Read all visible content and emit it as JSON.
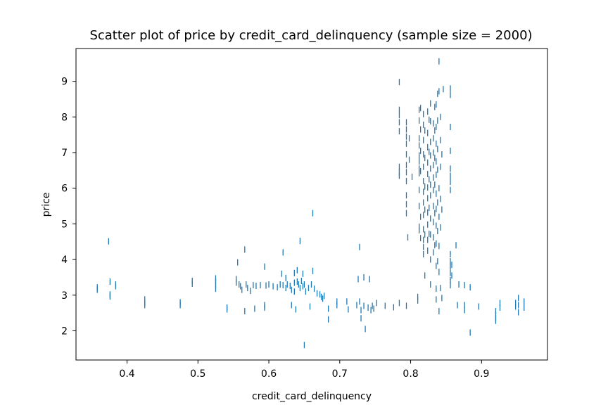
{
  "chart_data": {
    "type": "scatter",
    "title": "Scatter plot of price by credit_card_delinquency (sample size = 2000)",
    "xlabel": "credit_card_delinquency",
    "ylabel": "price",
    "xlim": [
      0.328,
      0.993
    ],
    "ylim": [
      1.18,
      9.92
    ],
    "xticks": [
      0.4,
      0.5,
      0.6,
      0.7,
      0.8,
      0.9
    ],
    "yticks": [
      2,
      3,
      4,
      5,
      6,
      7,
      8,
      9
    ],
    "xtick_labels": [
      "0.4",
      "0.5",
      "0.6",
      "0.7",
      "0.8",
      "0.9"
    ],
    "ytick_labels": [
      "2",
      "3",
      "4",
      "5",
      "6",
      "7",
      "8",
      "9"
    ],
    "grid": false,
    "marker": "|",
    "series_color": "#1f77b4",
    "points": [
      [
        0.358,
        3.22
      ],
      [
        0.358,
        3.15
      ],
      [
        0.374,
        4.51
      ],
      [
        0.376,
        3.38
      ],
      [
        0.376,
        3.02
      ],
      [
        0.376,
        2.96
      ],
      [
        0.384,
        3.3
      ],
      [
        0.384,
        3.25
      ],
      [
        0.425,
        2.88
      ],
      [
        0.425,
        2.78
      ],
      [
        0.425,
        2.72
      ],
      [
        0.475,
        2.8
      ],
      [
        0.475,
        2.72
      ],
      [
        0.492,
        3.4
      ],
      [
        0.492,
        3.32
      ],
      [
        0.525,
        3.47
      ],
      [
        0.525,
        3.38
      ],
      [
        0.525,
        3.28
      ],
      [
        0.525,
        3.18
      ],
      [
        0.541,
        2.65
      ],
      [
        0.541,
        2.6
      ],
      [
        0.554,
        3.45
      ],
      [
        0.554,
        3.35
      ],
      [
        0.556,
        3.92
      ],
      [
        0.558,
        3.3
      ],
      [
        0.56,
        3.25
      ],
      [
        0.562,
        3.15
      ],
      [
        0.566,
        4.28
      ],
      [
        0.566,
        2.55
      ],
      [
        0.568,
        3.3
      ],
      [
        0.57,
        3.2
      ],
      [
        0.574,
        3.12
      ],
      [
        0.578,
        3.28
      ],
      [
        0.58,
        2.62
      ],
      [
        0.582,
        3.26
      ],
      [
        0.588,
        3.28
      ],
      [
        0.594,
        3.8
      ],
      [
        0.594,
        2.72
      ],
      [
        0.594,
        2.65
      ],
      [
        0.596,
        3.27
      ],
      [
        0.6,
        3.3
      ],
      [
        0.606,
        3.25
      ],
      [
        0.612,
        3.22
      ],
      [
        0.616,
        3.3
      ],
      [
        0.618,
        3.6
      ],
      [
        0.62,
        4.2
      ],
      [
        0.62,
        3.28
      ],
      [
        0.624,
        3.48
      ],
      [
        0.624,
        3.2
      ],
      [
        0.626,
        3.3
      ],
      [
        0.63,
        3.26
      ],
      [
        0.632,
        3.15
      ],
      [
        0.632,
        2.72
      ],
      [
        0.636,
        3.62
      ],
      [
        0.636,
        3.35
      ],
      [
        0.636,
        3.1
      ],
      [
        0.638,
        2.6
      ],
      [
        0.64,
        3.7
      ],
      [
        0.64,
        3.38
      ],
      [
        0.642,
        3.3
      ],
      [
        0.644,
        4.52
      ],
      [
        0.644,
        3.2
      ],
      [
        0.646,
        3.4
      ],
      [
        0.648,
        3.6
      ],
      [
        0.648,
        3.25
      ],
      [
        0.65,
        1.6
      ],
      [
        0.65,
        3.3
      ],
      [
        0.652,
        3.1
      ],
      [
        0.656,
        3.2
      ],
      [
        0.658,
        2.68
      ],
      [
        0.66,
        3.3
      ],
      [
        0.662,
        5.3
      ],
      [
        0.662,
        3.68
      ],
      [
        0.664,
        3.18
      ],
      [
        0.668,
        3.05
      ],
      [
        0.672,
        3.02
      ],
      [
        0.674,
        2.95
      ],
      [
        0.676,
        2.9
      ],
      [
        0.678,
        2.98
      ],
      [
        0.684,
        2.62
      ],
      [
        0.684,
        2.32
      ],
      [
        0.696,
        2.82
      ],
      [
        0.696,
        2.72
      ],
      [
        0.71,
        2.82
      ],
      [
        0.712,
        2.6
      ],
      [
        0.724,
        2.72
      ],
      [
        0.726,
        3.45
      ],
      [
        0.728,
        4.35
      ],
      [
        0.728,
        2.82
      ],
      [
        0.73,
        2.58
      ],
      [
        0.73,
        2.35
      ],
      [
        0.734,
        3.5
      ],
      [
        0.734,
        2.7
      ],
      [
        0.736,
        2.05
      ],
      [
        0.74,
        2.65
      ],
      [
        0.742,
        3.45
      ],
      [
        0.744,
        2.58
      ],
      [
        0.746,
        2.7
      ],
      [
        0.748,
        2.62
      ],
      [
        0.752,
        2.78
      ],
      [
        0.764,
        2.7
      ],
      [
        0.776,
        2.66
      ],
      [
        0.784,
        8.98
      ],
      [
        0.784,
        8.2
      ],
      [
        0.784,
        8.05
      ],
      [
        0.784,
        7.85
      ],
      [
        0.784,
        7.6
      ],
      [
        0.784,
        6.6
      ],
      [
        0.784,
        6.45
      ],
      [
        0.784,
        6.35
      ],
      [
        0.784,
        2.78
      ],
      [
        0.794,
        7.85
      ],
      [
        0.794,
        7.65
      ],
      [
        0.794,
        7.45
      ],
      [
        0.794,
        7.25
      ],
      [
        0.794,
        6.95
      ],
      [
        0.794,
        6.65
      ],
      [
        0.794,
        6.45
      ],
      [
        0.794,
        6.2
      ],
      [
        0.794,
        5.8
      ],
      [
        0.794,
        5.55
      ],
      [
        0.794,
        5.3
      ],
      [
        0.794,
        2.7
      ],
      [
        0.796,
        4.62
      ],
      [
        0.798,
        7.4
      ],
      [
        0.798,
        6.8
      ],
      [
        0.802,
        6.32
      ],
      [
        0.81,
        2.95
      ],
      [
        0.81,
        2.85
      ],
      [
        0.812,
        8.2
      ],
      [
        0.812,
        7.9
      ],
      [
        0.812,
        7.4
      ],
      [
        0.812,
        7.2
      ],
      [
        0.812,
        6.92
      ],
      [
        0.812,
        6.75
      ],
      [
        0.812,
        6.55
      ],
      [
        0.812,
        6.42
      ],
      [
        0.812,
        5.95
      ],
      [
        0.812,
        5.5
      ],
      [
        0.812,
        4.92
      ],
      [
        0.812,
        4.82
      ],
      [
        0.814,
        8.25
      ],
      [
        0.814,
        7.65
      ],
      [
        0.814,
        7.05
      ],
      [
        0.814,
        6.48
      ],
      [
        0.814,
        5.2
      ],
      [
        0.814,
        4.6
      ],
      [
        0.818,
        8.08
      ],
      [
        0.818,
        7.78
      ],
      [
        0.818,
        7.35
      ],
      [
        0.818,
        6.95
      ],
      [
        0.818,
        6.6
      ],
      [
        0.818,
        6.2
      ],
      [
        0.818,
        5.9
      ],
      [
        0.818,
        5.6
      ],
      [
        0.818,
        5.25
      ],
      [
        0.818,
        4.85
      ],
      [
        0.818,
        4.55
      ],
      [
        0.818,
        4.35
      ],
      [
        0.818,
        4.15
      ],
      [
        0.82,
        7.62
      ],
      [
        0.82,
        6.85
      ],
      [
        0.82,
        6.05
      ],
      [
        0.82,
        5.4
      ],
      [
        0.82,
        4.7
      ],
      [
        0.82,
        3.55
      ],
      [
        0.824,
        8.15
      ],
      [
        0.824,
        7.55
      ],
      [
        0.824,
        7.15
      ],
      [
        0.824,
        6.72
      ],
      [
        0.824,
        6.4
      ],
      [
        0.824,
        6.02
      ],
      [
        0.824,
        5.72
      ],
      [
        0.824,
        5.32
      ],
      [
        0.824,
        4.98
      ],
      [
        0.824,
        4.55
      ],
      [
        0.824,
        4.25
      ],
      [
        0.826,
        7.92
      ],
      [
        0.826,
        7.02
      ],
      [
        0.826,
        6.25
      ],
      [
        0.826,
        5.45
      ],
      [
        0.826,
        4.72
      ],
      [
        0.828,
        8.38
      ],
      [
        0.828,
        7.88
      ],
      [
        0.828,
        7.3
      ],
      [
        0.828,
        6.92
      ],
      [
        0.828,
        6.55
      ],
      [
        0.828,
        6.1
      ],
      [
        0.828,
        5.8
      ],
      [
        0.828,
        5.15
      ],
      [
        0.828,
        4.7
      ],
      [
        0.828,
        4.0
      ],
      [
        0.828,
        3.3
      ],
      [
        0.832,
        7.82
      ],
      [
        0.832,
        7.4
      ],
      [
        0.832,
        7.0
      ],
      [
        0.832,
        6.65
      ],
      [
        0.832,
        6.3
      ],
      [
        0.832,
        5.95
      ],
      [
        0.832,
        5.5
      ],
      [
        0.832,
        5.05
      ],
      [
        0.832,
        4.62
      ],
      [
        0.832,
        4.2
      ],
      [
        0.834,
        8.28
      ],
      [
        0.834,
        7.62
      ],
      [
        0.834,
        6.85
      ],
      [
        0.834,
        6.1
      ],
      [
        0.834,
        5.3
      ],
      [
        0.834,
        4.4
      ],
      [
        0.836,
        8.35
      ],
      [
        0.836,
        7.72
      ],
      [
        0.836,
        7.25
      ],
      [
        0.836,
        6.75
      ],
      [
        0.836,
        6.38
      ],
      [
        0.836,
        5.85
      ],
      [
        0.836,
        5.42
      ],
      [
        0.836,
        4.95
      ],
      [
        0.836,
        4.45
      ],
      [
        0.836,
        3.82
      ],
      [
        0.836,
        3.18
      ],
      [
        0.836,
        2.88
      ],
      [
        0.838,
        8.65
      ],
      [
        0.838,
        7.9
      ],
      [
        0.838,
        7.1
      ],
      [
        0.838,
        6.52
      ],
      [
        0.838,
        5.6
      ],
      [
        0.838,
        4.8
      ],
      [
        0.838,
        3.95
      ],
      [
        0.84,
        9.56
      ],
      [
        0.84,
        8.72
      ],
      [
        0.84,
        6.0
      ],
      [
        0.84,
        5.2
      ],
      [
        0.84,
        4.38
      ],
      [
        0.84,
        3.65
      ],
      [
        0.84,
        2.55
      ],
      [
        0.842,
        8.0
      ],
      [
        0.842,
        7.35
      ],
      [
        0.842,
        6.6
      ],
      [
        0.842,
        5.7
      ],
      [
        0.842,
        4.9
      ],
      [
        0.842,
        3.2
      ],
      [
        0.844,
        6.95
      ],
      [
        0.844,
        5.4
      ],
      [
        0.844,
        2.92
      ],
      [
        0.846,
        8.78
      ],
      [
        0.856,
        8.8
      ],
      [
        0.856,
        8.62
      ],
      [
        0.856,
        7.72
      ],
      [
        0.856,
        7.05
      ],
      [
        0.856,
        6.55
      ],
      [
        0.856,
        6.35
      ],
      [
        0.856,
        6.18
      ],
      [
        0.856,
        5.95
      ],
      [
        0.856,
        4.15
      ],
      [
        0.856,
        3.95
      ],
      [
        0.856,
        3.8
      ],
      [
        0.856,
        3.62
      ],
      [
        0.856,
        3.42
      ],
      [
        0.856,
        3.28
      ],
      [
        0.858,
        3.85
      ],
      [
        0.858,
        3.55
      ],
      [
        0.864,
        4.4
      ],
      [
        0.866,
        2.72
      ],
      [
        0.868,
        3.3
      ],
      [
        0.876,
        3.28
      ],
      [
        0.876,
        2.72
      ],
      [
        0.876,
        2.58
      ],
      [
        0.884,
        3.22
      ],
      [
        0.884,
        1.95
      ],
      [
        0.896,
        2.68
      ],
      [
        0.92,
        2.55
      ],
      [
        0.92,
        2.45
      ],
      [
        0.92,
        2.35
      ],
      [
        0.92,
        2.28
      ],
      [
        0.926,
        2.78
      ],
      [
        0.926,
        2.65
      ],
      [
        0.948,
        2.78
      ],
      [
        0.948,
        2.68
      ],
      [
        0.952,
        2.92
      ],
      [
        0.952,
        2.72
      ],
      [
        0.952,
        2.52
      ],
      [
        0.96,
        2.82
      ],
      [
        0.96,
        2.65
      ]
    ]
  }
}
